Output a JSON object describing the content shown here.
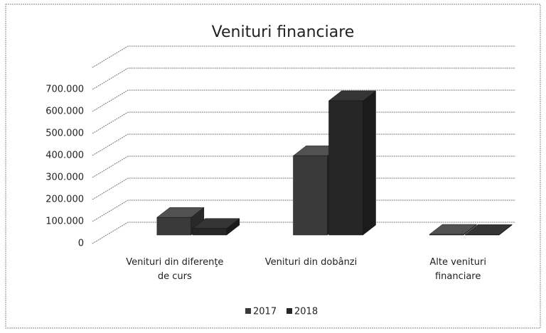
{
  "chart_data": {
    "type": "bar3d",
    "title": "Venituri financiare",
    "categories": [
      "Venituri din diferenţe de curs",
      "Venituri din dobânzi",
      "Alte venituri financiare"
    ],
    "series": [
      {
        "name": "2017",
        "color": "#3a3a3a",
        "values": [
          80000,
          360000,
          3000
        ]
      },
      {
        "name": "2018",
        "color": "#262626",
        "values": [
          30000,
          610000,
          2000
        ]
      }
    ],
    "ylim": [
      0,
      800000
    ],
    "yticks": [
      0,
      {
        "value": 100000,
        "label": "100.000"
      },
      {
        "value": 200000,
        "label": "200.000"
      },
      {
        "value": 300000,
        "label": "300.000"
      },
      {
        "value": 400000,
        "label": "400.000"
      },
      {
        "value": 500000,
        "label": "500.000"
      },
      {
        "value": 600000,
        "label": "600.000"
      },
      {
        "value": 700000,
        "label": "700.000"
      },
      {
        "value": 800000,
        "label": ""
      }
    ],
    "grid": true,
    "legend": "bottom"
  }
}
